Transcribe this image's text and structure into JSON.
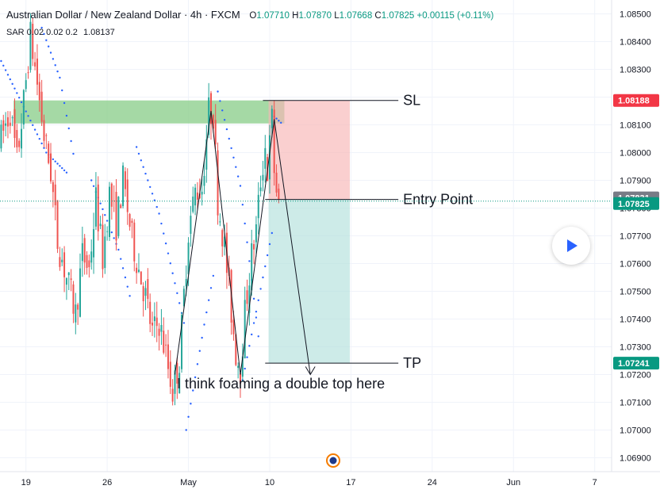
{
  "header": {
    "title": "Australian Dollar / New Zealand Dollar · 4h · FXCM",
    "ohlc": {
      "o": "1.07710",
      "h": "1.07870",
      "l": "1.07668",
      "c": "1.07825",
      "change": "+0.00115 (+0.11%)"
    }
  },
  "indicator": {
    "label": "SAR 0.02 0.02 0.2",
    "value": "1.08137"
  },
  "colors": {
    "up": "#26a69a",
    "down": "#ef5350",
    "sar": "#2962ff",
    "sl_zone": "#8fd08f",
    "risk": "#f7b5b5",
    "reward": "#b2e0dc",
    "tag_red": "#f23645",
    "tag_gray": "#787b86",
    "tag_teal": "#089981"
  },
  "chart_data": {
    "type": "candlestick",
    "symbol": "AUDNZD",
    "timeframe": "4h",
    "ylim": [
      1.0685,
      1.0855
    ],
    "y_ticks": [
      1.085,
      1.084,
      1.083,
      1.082,
      1.081,
      1.08,
      1.079,
      1.078,
      1.077,
      1.076,
      1.075,
      1.074,
      1.073,
      1.072,
      1.071,
      1.07,
      1.069
    ],
    "y_tick_labels": [
      "1.08500",
      "1.08400",
      "1.08300",
      "1.08200",
      "1.08100",
      "1.08000",
      "1.07900",
      "1.07800",
      "1.07700",
      "1.07600",
      "1.07500",
      "1.07400",
      "1.07300",
      "1.07200",
      "1.07100",
      "1.07000",
      "1.06900"
    ],
    "x_ticks": [
      {
        "label": "19",
        "bar": 11
      },
      {
        "label": "26",
        "bar": 47
      },
      {
        "label": "May",
        "bar": 83
      },
      {
        "label": "10",
        "bar": 119
      },
      {
        "label": "17",
        "bar": 155
      },
      {
        "label": "24",
        "bar": 191
      },
      {
        "label": "Jun",
        "bar": 227
      },
      {
        "label": "7",
        "bar": 263
      }
    ],
    "total_bars": 271,
    "price_tags": [
      {
        "value": 1.08188,
        "label": "1.08188",
        "color": "red"
      },
      {
        "value": 1.07831,
        "label": "1.07831",
        "color": "gray"
      },
      {
        "value": 1.07825,
        "label": "1.07825",
        "color": "teal"
      },
      {
        "value": 1.07241,
        "label": "1.07241",
        "color": "teal"
      }
    ],
    "current_price": 1.07825,
    "price_path": [
      [
        0,
        1.0805
      ],
      [
        4,
        1.0815
      ],
      [
        7,
        1.0797
      ],
      [
        10,
        1.0818
      ],
      [
        13,
        1.0842
      ],
      [
        16,
        1.0825
      ],
      [
        19,
        1.0806
      ],
      [
        22,
        1.0793
      ],
      [
        25,
        1.0768
      ],
      [
        29,
        1.0755
      ],
      [
        33,
        1.0742
      ],
      [
        36,
        1.0763
      ],
      [
        39,
        1.0758
      ],
      [
        42,
        1.0783
      ],
      [
        45,
        1.0762
      ],
      [
        48,
        1.0785
      ],
      [
        51,
        1.0774
      ],
      [
        54,
        1.079
      ],
      [
        58,
        1.0769
      ],
      [
        61,
        1.0758
      ],
      [
        64,
        1.0748
      ],
      [
        67,
        1.0735
      ],
      [
        70,
        1.0739
      ],
      [
        73,
        1.0727
      ],
      [
        76,
        1.0714
      ],
      [
        79,
        1.0725
      ],
      [
        83,
        1.0772
      ],
      [
        86,
        1.0786
      ],
      [
        89,
        1.0787
      ],
      [
        92,
        1.0815
      ],
      [
        94,
        1.0814
      ],
      [
        96,
        1.0783
      ],
      [
        99,
        1.0766
      ],
      [
        101,
        1.075
      ],
      [
        104,
        1.0728
      ],
      [
        106,
        1.0722
      ],
      [
        108,
        1.0742
      ],
      [
        111,
        1.0763
      ],
      [
        113,
        1.0772
      ],
      [
        115,
        1.079
      ],
      [
        117,
        1.0802
      ],
      [
        118,
        1.0793
      ],
      [
        120,
        1.0812
      ],
      [
        121,
        1.0794
      ],
      [
        123,
        1.078
      ]
    ],
    "sar_segments": [
      [
        [
          0,
          1.0833
        ],
        [
          20,
          1.08
        ],
        [
          30,
          1.0792
        ]
      ],
      [
        [
          18,
          1.0845
        ],
        [
          26,
          1.0827
        ],
        [
          33,
          1.0795
        ]
      ],
      [
        [
          40,
          1.079
        ],
        [
          52,
          1.0765
        ],
        [
          58,
          1.0745
        ]
      ],
      [
        [
          60,
          1.0802
        ],
        [
          70,
          1.0778
        ],
        [
          82,
          1.0735
        ]
      ],
      [
        [
          82,
          1.07
        ],
        [
          90,
          1.0738
        ],
        [
          95,
          1.076
        ]
      ],
      [
        [
          96,
          1.0822
        ],
        [
          106,
          1.0788
        ],
        [
          115,
          1.0727
        ]
      ],
      [
        [
          107,
          1.0718
        ],
        [
          116,
          1.0755
        ],
        [
          121,
          1.0775
        ]
      ],
      [
        [
          121,
          1.0813
        ],
        [
          125,
          1.081
        ]
      ]
    ],
    "zones": {
      "sl_zone": {
        "x_start": 6,
        "x_end": 126,
        "y_top": 1.08188,
        "y_bottom": 1.08105
      },
      "risk_box": {
        "x_start": 119,
        "x_end": 155,
        "top": 1.08188,
        "bottom": 1.07831
      },
      "reward_box": {
        "x_start": 119,
        "x_end": 155,
        "top": 1.07831,
        "bottom": 1.07241
      }
    },
    "annotations": {
      "sl": {
        "label": "SL",
        "price": 1.08188,
        "x_start": 116,
        "x_end": 176
      },
      "entry": {
        "label": "Entry Point",
        "price": 1.07831,
        "x_start": 117,
        "x_end": 176
      },
      "tp": {
        "label": "TP",
        "price": 1.07241,
        "x_start": 117,
        "x_end": 176
      },
      "note": "I think foaming a double top here",
      "pattern": [
        [
          77,
          1.072
        ],
        [
          93,
          1.0815
        ],
        [
          106,
          1.072
        ],
        [
          121,
          1.0812
        ],
        [
          137,
          1.072
        ]
      ]
    }
  }
}
